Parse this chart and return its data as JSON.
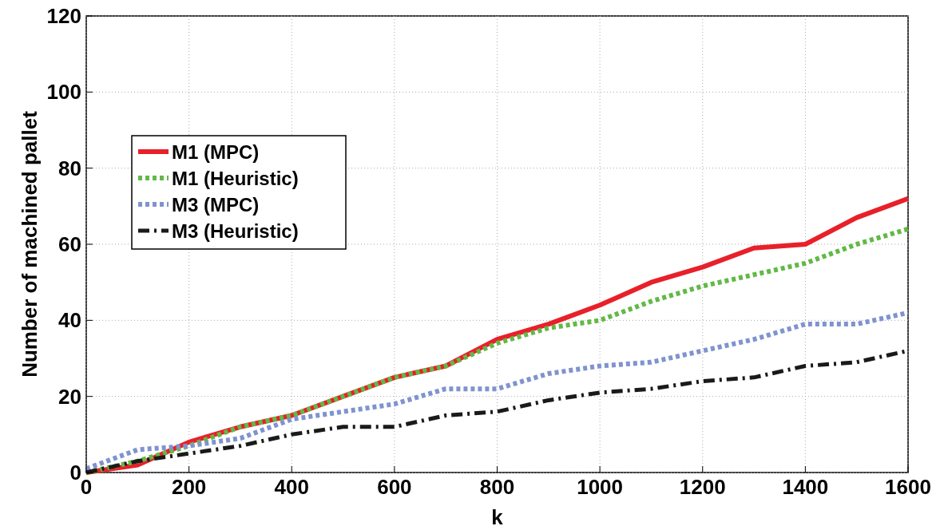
{
  "chart_data": {
    "type": "line",
    "xlabel": "k",
    "ylabel": "Number of machined pallet",
    "x": [
      0,
      100,
      200,
      300,
      400,
      500,
      600,
      700,
      800,
      900,
      1000,
      1100,
      1200,
      1300,
      1400,
      1500,
      1600
    ],
    "series": [
      {
        "name": "M1 (MPC)",
        "color": "#e8202a",
        "line_style": "solid",
        "values": [
          0,
          2,
          8,
          12,
          15,
          20,
          25,
          28,
          35,
          39,
          44,
          50,
          54,
          59,
          60,
          67,
          72
        ]
      },
      {
        "name": "M1 (Heuristic)",
        "color": "#62b946",
        "line_style": "dotted",
        "values": [
          0,
          3,
          7,
          12,
          15,
          20,
          25,
          28,
          34,
          38,
          40,
          45,
          49,
          52,
          55,
          60,
          64
        ]
      },
      {
        "name": "M3 (MPC)",
        "color": "#7f93cf",
        "line_style": "dotted",
        "values": [
          1,
          6,
          7,
          9,
          14,
          16,
          18,
          22,
          22,
          26,
          28,
          29,
          32,
          35,
          39,
          39,
          42
        ]
      },
      {
        "name": "M3 (Heuristic)",
        "color": "#1a1a1a",
        "line_style": "dashed",
        "values": [
          0,
          3,
          5,
          7,
          10,
          12,
          12,
          15,
          16,
          19,
          21,
          22,
          24,
          25,
          28,
          29,
          32
        ]
      }
    ],
    "xlim": [
      0,
      1600
    ],
    "xticks": [
      0,
      200,
      400,
      600,
      800,
      1000,
      1200,
      1400,
      1600
    ],
    "ylim": [
      0,
      120
    ],
    "yticks": [
      0,
      20,
      40,
      60,
      80,
      100,
      120
    ],
    "grid": true,
    "legend": "left"
  }
}
